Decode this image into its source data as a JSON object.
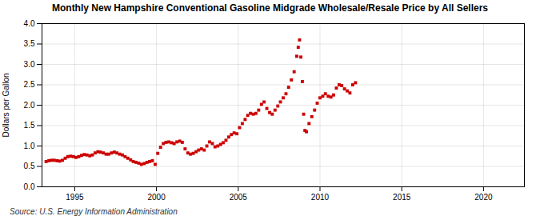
{
  "chart_data": {
    "type": "scatter",
    "title": "Monthly New Hampshire Conventional Gasoline Midgrade Wholesale/Resale Price by All Sellers",
    "ylabel": "Dollars per Gallon",
    "source": "Source: U.S. Energy Information Administration",
    "color": "#cc0000",
    "marker": "square",
    "grid": true,
    "xlim": [
      1993.0,
      2022.5
    ],
    "ylim": [
      0.0,
      4.0
    ],
    "xticks": [
      1995,
      2000,
      2005,
      2010,
      2015,
      2020
    ],
    "yticks": [
      {
        "value": 0.0,
        "label": "0.0"
      },
      0.5,
      {
        "value": 1.0,
        "label": "1.0"
      },
      1.5,
      {
        "value": 2.0,
        "label": "2.0"
      },
      2.5,
      {
        "value": 3.0,
        "label": "3.0"
      },
      3.5,
      {
        "value": 4.0,
        "label": "4.0"
      }
    ],
    "x": [
      1993.25,
      1993.42,
      1993.58,
      1993.75,
      1993.92,
      1994.08,
      1994.25,
      1994.42,
      1994.58,
      1994.75,
      1994.92,
      1995.08,
      1995.25,
      1995.42,
      1995.58,
      1995.75,
      1995.92,
      1996.08,
      1996.25,
      1996.42,
      1996.58,
      1996.75,
      1996.92,
      1997.08,
      1997.25,
      1997.42,
      1997.58,
      1997.75,
      1997.92,
      1998.08,
      1998.25,
      1998.42,
      1998.58,
      1998.75,
      1998.92,
      1999.08,
      1999.25,
      1999.42,
      1999.58,
      1999.75,
      1999.92,
      2000.08,
      2000.25,
      2000.42,
      2000.58,
      2000.75,
      2000.92,
      2001.08,
      2001.25,
      2001.42,
      2001.58,
      2001.75,
      2001.92,
      2002.08,
      2002.25,
      2002.42,
      2002.58,
      2002.75,
      2002.92,
      2003.08,
      2003.25,
      2003.42,
      2003.58,
      2003.75,
      2003.92,
      2004.08,
      2004.25,
      2004.42,
      2004.58,
      2004.75,
      2004.92,
      2005.08,
      2005.25,
      2005.42,
      2005.58,
      2005.75,
      2005.92,
      2006.08,
      2006.25,
      2006.42,
      2006.58,
      2006.75,
      2006.92,
      2007.08,
      2007.25,
      2007.42,
      2007.58,
      2007.75,
      2007.92,
      2008.08,
      2008.25,
      2008.42,
      2008.58,
      2008.67,
      2008.75,
      2008.83,
      2008.92,
      2009.0,
      2009.08,
      2009.17,
      2009.33,
      2009.5,
      2009.67,
      2009.83,
      2010.0,
      2010.17,
      2010.33,
      2010.5,
      2010.67,
      2010.83,
      2011.0,
      2011.17,
      2011.33,
      2011.5,
      2011.67,
      2011.83,
      2012.0,
      2012.17
    ],
    "values": [
      0.62,
      0.64,
      0.65,
      0.65,
      0.64,
      0.63,
      0.65,
      0.7,
      0.74,
      0.75,
      0.74,
      0.72,
      0.74,
      0.77,
      0.79,
      0.78,
      0.76,
      0.78,
      0.83,
      0.86,
      0.85,
      0.83,
      0.8,
      0.8,
      0.83,
      0.85,
      0.83,
      0.8,
      0.78,
      0.74,
      0.7,
      0.66,
      0.62,
      0.6,
      0.58,
      0.55,
      0.57,
      0.6,
      0.62,
      0.64,
      0.55,
      0.82,
      0.97,
      1.06,
      1.09,
      1.1,
      1.08,
      1.06,
      1.1,
      1.12,
      1.09,
      0.93,
      0.83,
      0.8,
      0.82,
      0.86,
      0.9,
      0.93,
      0.9,
      1.0,
      1.1,
      1.06,
      0.98,
      1.0,
      1.04,
      1.08,
      1.14,
      1.22,
      1.28,
      1.32,
      1.3,
      1.45,
      1.55,
      1.65,
      1.75,
      1.8,
      1.78,
      1.8,
      1.88,
      2.02,
      2.08,
      1.92,
      1.82,
      1.78,
      1.88,
      1.98,
      2.08,
      2.18,
      2.28,
      2.44,
      2.62,
      2.82,
      3.2,
      3.42,
      3.6,
      3.18,
      2.58,
      1.78,
      1.38,
      1.35,
      1.55,
      1.72,
      1.88,
      2.05,
      2.18,
      2.22,
      2.28,
      2.22,
      2.2,
      2.25,
      2.42,
      2.5,
      2.48,
      2.4,
      2.35,
      2.3,
      2.5,
      2.55
    ]
  }
}
